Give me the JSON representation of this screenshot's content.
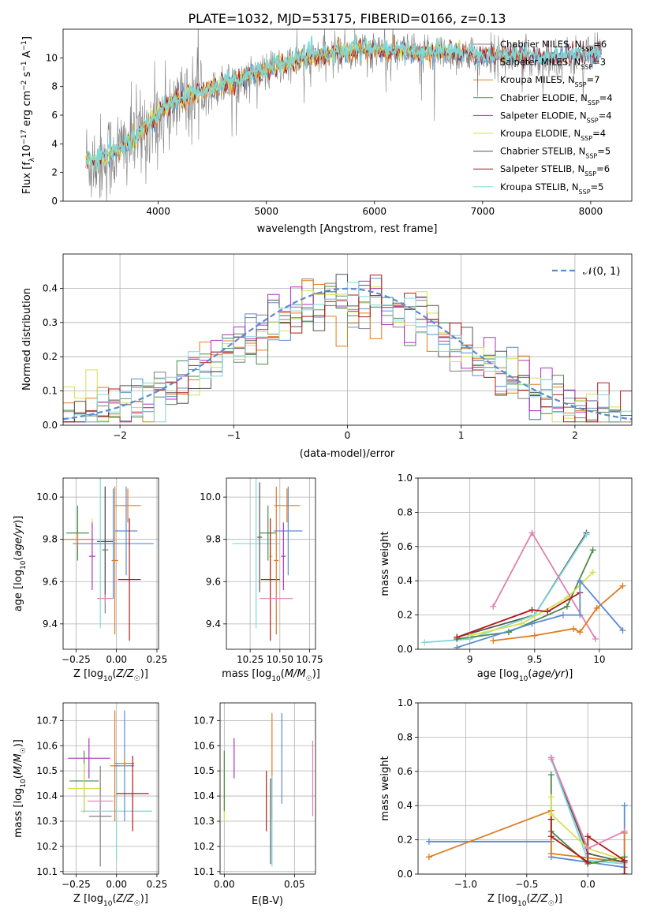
{
  "title": "PLATE=1032, MJD=53175, FIBERID=0166, z=0.13",
  "colors": {
    "Chabrier MILES": "#808080",
    "Salpeter MILES": "#5b8bd0",
    "Kroupa MILES": "#e07b20",
    "Chabrier ELODIE": "#4a8a4a",
    "Salpeter ELODIE": "#b030c0",
    "Kroupa ELODIE": "#d6e050",
    "Chabrier STELIB": "#555555",
    "Salpeter STELIB": "#b01a1a",
    "Kroupa STELIB": "#7fd8d8",
    "extra": "#e080b0"
  },
  "chart_data": [
    {
      "id": "spectrum",
      "type": "line",
      "xlabel": "wavelength [Angstrom, rest frame]",
      "ylabel": "Flux [f_λ10^-17 erg cm^-2 s^-1 A^-1]",
      "xlim": [
        3120,
        8380
      ],
      "ylim": [
        0,
        12
      ],
      "xticks": [
        4000,
        5000,
        6000,
        7000,
        8000
      ],
      "yticks": [
        0,
        2,
        4,
        6,
        8,
        10
      ],
      "legend_position": "top-right",
      "series": [
        {
          "name": "Chabrier MILES, N_SSP=6",
          "label": "Chabrier MILES, N",
          "sub": "SSP",
          "suffix": "=6"
        },
        {
          "name": "Salpeter MILES, N_SSP=3",
          "label": "Salpeter MILES, N",
          "sub": "SSP",
          "suffix": "=3"
        },
        {
          "name": "Kroupa MILES, N_SSP=7",
          "label": "Kroupa MILES, N",
          "sub": "SSP",
          "suffix": "=7"
        },
        {
          "name": "Chabrier ELODIE, N_SSP=4",
          "label": "Chabrier ELODIE, N",
          "sub": "SSP",
          "suffix": "=4"
        },
        {
          "name": "Salpeter ELODIE, N_SSP=4",
          "label": "Salpeter ELODIE, N",
          "sub": "SSP",
          "suffix": "=4"
        },
        {
          "name": "Kroupa ELODIE, N_SSP=4",
          "label": "Kroupa ELODIE, N",
          "sub": "SSP",
          "suffix": "=4"
        },
        {
          "name": "Chabrier STELIB, N_SSP=5",
          "label": "Chabrier STELIB, N",
          "sub": "SSP",
          "suffix": "=5"
        },
        {
          "name": "Salpeter STELIB, N_SSP=6",
          "label": "Salpeter STELIB, N",
          "sub": "SSP",
          "suffix": "=6"
        },
        {
          "name": "Kroupa STELIB, N_SSP=5",
          "label": "Kroupa STELIB, N",
          "sub": "SSP",
          "suffix": "=5"
        }
      ],
      "continuum": [
        [
          3450,
          2.8
        ],
        [
          3550,
          3.2
        ],
        [
          3650,
          3.6
        ],
        [
          3800,
          4.4
        ],
        [
          3950,
          5.6
        ],
        [
          4100,
          6.6
        ],
        [
          4300,
          7.3
        ],
        [
          4500,
          7.8
        ],
        [
          4700,
          8.3
        ],
        [
          4900,
          8.8
        ],
        [
          5100,
          9.3
        ],
        [
          5300,
          9.8
        ],
        [
          5500,
          10.1
        ],
        [
          5700,
          10.3
        ],
        [
          5900,
          10.5
        ],
        [
          6100,
          10.4
        ],
        [
          6300,
          10.3
        ],
        [
          6500,
          10.3
        ],
        [
          6700,
          10.3
        ],
        [
          6900,
          10.2
        ],
        [
          7100,
          10.1
        ],
        [
          7300,
          10.1
        ],
        [
          7500,
          10.0
        ],
        [
          7700,
          10.0
        ],
        [
          7900,
          10.1
        ],
        [
          8100,
          10.2
        ]
      ]
    },
    {
      "id": "residual-histogram",
      "type": "bar",
      "xlabel": "(data-model)/error",
      "ylabel": "Normed distribution",
      "xlim": [
        -2.5,
        2.5
      ],
      "ylim": [
        0,
        0.5
      ],
      "xticks": [
        -2,
        -1,
        0,
        1,
        2
      ],
      "yticks": [
        0.0,
        0.1,
        0.2,
        0.3,
        0.4
      ],
      "legend": {
        "label": "𝒩(0, 1)",
        "position": "top-right",
        "style": "dashed"
      },
      "bin_edges_start": -2.5,
      "bin_width": 0.1
    },
    {
      "id": "age-vs-Z",
      "type": "scatter",
      "xlabel": "Z [log10(Z/Z☉)]",
      "ylabel": "age [log10(age/yr)]",
      "xlim": [
        -0.33,
        0.26
      ],
      "ylim": [
        9.28,
        10.09
      ],
      "xticks": [
        -0.25,
        0.0,
        0.25
      ],
      "xticklabels": [
        "−0.25",
        "0.00",
        "0.25"
      ],
      "yticks": [
        9.4,
        9.6,
        9.8,
        10.0
      ],
      "points": [
        {
          "series": "Chabrier ELODIE",
          "x": -0.24,
          "y": 9.83,
          "xerr": 0.07,
          "yerr": 0.13
        },
        {
          "series": "Kroupa MILES",
          "x": -0.24,
          "y": 9.8,
          "xerr": 0.1,
          "yerr": 0.03
        },
        {
          "series": "Kroupa ELODIE",
          "x": -0.15,
          "y": 9.78,
          "xerr": 0.07,
          "yerr": 0.12
        },
        {
          "series": "Salpeter ELODIE",
          "x": -0.15,
          "y": 9.72,
          "xerr": 0.02,
          "yerr": 0.16
        },
        {
          "series": "Chabrier MILES",
          "x": -0.07,
          "y": 9.75,
          "xerr": 0.02,
          "yerr": 0.3
        },
        {
          "series": "Chabrier STELIB",
          "x": -0.07,
          "y": 9.79,
          "xerr": 0.05,
          "yerr": 0.26
        },
        {
          "series": "Kroupa STELIB",
          "x": -0.1,
          "y": 9.78,
          "xerr": 0.1,
          "yerr": 0.4
        },
        {
          "series": "Salpeter MILES",
          "x": -0.02,
          "y": 9.78,
          "xerr": 0.25,
          "yerr": 0.26
        },
        {
          "series": "Kroupa MILES",
          "x": -0.01,
          "y": 9.7,
          "xerr": 0.02,
          "yerr": 0.35
        },
        {
          "series": "Kroupa MILES",
          "x": 0.07,
          "y": 9.96,
          "xerr": 0.08,
          "yerr": 0.08
        },
        {
          "series": "Salpeter MILES",
          "x": 0.06,
          "y": 9.84,
          "xerr": 0.07,
          "yerr": 0.21
        },
        {
          "series": "Salpeter STELIB",
          "x": 0.08,
          "y": 9.61,
          "xerr": 0.07,
          "yerr": 0.29
        },
        {
          "series": "extra",
          "x": -0.07,
          "y": 9.52,
          "xerr": 0.05,
          "yerr": 0.02
        }
      ]
    },
    {
      "id": "age-vs-mass",
      "type": "scatter",
      "xlabel": "mass [log10(M/M☉)]",
      "xlim": [
        10.05,
        10.8
      ],
      "ylim": [
        9.28,
        10.09
      ],
      "xticks": [
        10.25,
        10.5,
        10.75
      ],
      "xticklabels": [
        "10.25",
        "10.50",
        "10.75"
      ],
      "yticks": [
        9.4,
        9.6,
        9.8,
        10.0
      ],
      "points": [
        {
          "series": "Kroupa STELIB",
          "x": 10.3,
          "y": 9.78,
          "xerr": 0.2,
          "yerr": 0.4
        },
        {
          "series": "Chabrier STELIB",
          "x": 10.33,
          "y": 9.81,
          "xerr": 0.02,
          "yerr": 0.26
        },
        {
          "series": "Chabrier ELODIE",
          "x": 10.4,
          "y": 9.83,
          "xerr": 0.07,
          "yerr": 0.13
        },
        {
          "series": "Kroupa ELODIE",
          "x": 10.42,
          "y": 9.72,
          "xerr": 0.02,
          "yerr": 0.12
        },
        {
          "series": "Salpeter STELIB",
          "x": 10.42,
          "y": 9.61,
          "xerr": 0.08,
          "yerr": 0.29
        },
        {
          "series": "Kroupa MILES",
          "x": 10.47,
          "y": 9.7,
          "xerr": 0.02,
          "yerr": 0.35
        },
        {
          "series": "Kroupa MILES",
          "x": 10.56,
          "y": 9.96,
          "xerr": 0.11,
          "yerr": 0.08
        },
        {
          "series": "Salpeter MILES",
          "x": 10.57,
          "y": 9.84,
          "xerr": 0.12,
          "yerr": 0.21
        },
        {
          "series": "Salpeter ELODIE",
          "x": 10.53,
          "y": 9.72,
          "xerr": 0.02,
          "yerr": 0.16
        },
        {
          "series": "extra",
          "x": 10.47,
          "y": 9.52,
          "xerr": 0.14,
          "yerr": 0.02
        }
      ]
    },
    {
      "id": "mass-weight-vs-age",
      "type": "line",
      "xlabel": "age [log10(age/yr)]",
      "ylabel": "mass weight",
      "xlim": [
        8.6,
        10.25
      ],
      "ylim": [
        0,
        1
      ],
      "xticks": [
        9.0,
        9.5,
        10.0
      ],
      "yticks": [
        0.0,
        0.2,
        0.4,
        0.6,
        0.8,
        1.0
      ],
      "series": [
        {
          "name": "Chabrier STELIB",
          "x": [
            8.9,
            9.5,
            9.9
          ],
          "y": [
            0.07,
            0.2,
            0.68
          ]
        },
        {
          "name": "Kroupa STELIB",
          "x": [
            8.65,
            9.0,
            9.5,
            9.9
          ],
          "y": [
            0.04,
            0.06,
            0.2,
            0.67
          ]
        },
        {
          "name": "Chabrier ELODIE",
          "x": [
            8.9,
            9.3,
            9.75,
            9.95
          ],
          "y": [
            0.06,
            0.1,
            0.25,
            0.58
          ]
        },
        {
          "name": "Kroupa ELODIE",
          "x": [
            9.0,
            9.4,
            9.75,
            9.95
          ],
          "y": [
            0.08,
            0.15,
            0.3,
            0.45
          ]
        },
        {
          "name": "extra",
          "x": [
            9.18,
            9.48,
            9.97
          ],
          "y": [
            0.25,
            0.68,
            0.06
          ]
        },
        {
          "name": "Salpeter STELIB",
          "x": [
            8.9,
            9.48,
            9.6,
            9.85
          ],
          "y": [
            0.07,
            0.23,
            0.22,
            0.33
          ]
        },
        {
          "name": "Kroupa MILES",
          "x": [
            9.18,
            9.5,
            9.8,
            9.85,
            9.98,
            10.18
          ],
          "y": [
            0.05,
            0.08,
            0.12,
            0.1,
            0.24,
            0.37
          ]
        },
        {
          "name": "Salpeter MILES",
          "x": [
            8.9,
            9.48,
            9.72,
            9.85,
            9.85,
            10.18
          ],
          "y": [
            0.01,
            0.15,
            0.2,
            0.2,
            0.4,
            0.11
          ]
        }
      ]
    },
    {
      "id": "mass-vs-Z",
      "type": "scatter",
      "xlabel": "Z [log10(Z/Z☉)]",
      "ylabel": "mass [log10(M/M☉)]",
      "xlim": [
        -0.33,
        0.26
      ],
      "ylim": [
        10.09,
        10.77
      ],
      "xticks": [
        -0.25,
        0.0,
        0.25
      ],
      "xticklabels": [
        "−0.25",
        "0.00",
        "0.25"
      ],
      "yticks": [
        10.1,
        10.2,
        10.3,
        10.4,
        10.5,
        10.6,
        10.7
      ],
      "points": [
        {
          "series": "Salpeter ELODIE",
          "x": -0.17,
          "y": 10.55,
          "xerr": 0.13,
          "yerr": 0.08
        },
        {
          "series": "Chabrier ELODIE",
          "x": -0.2,
          "y": 10.46,
          "xerr": 0.09,
          "yerr": 0.12
        },
        {
          "series": "Kroupa ELODIE",
          "x": -0.2,
          "y": 10.43,
          "xerr": 0.1,
          "yerr": 0.1
        },
        {
          "series": "Chabrier MILES",
          "x": -0.1,
          "y": 10.32,
          "xerr": 0.07,
          "yerr": 0.2
        },
        {
          "series": "extra",
          "x": -0.1,
          "y": 10.38,
          "xerr": 0.08,
          "yerr": 0.02
        },
        {
          "series": "Kroupa STELIB",
          "x": 0.0,
          "y": 10.34,
          "xerr": 0.22,
          "yerr": 0.2
        },
        {
          "series": "Kroupa MILES",
          "x": -0.01,
          "y": 10.52,
          "xerr": 0.03,
          "yerr": 0.22
        },
        {
          "series": "Salpeter MILES",
          "x": 0.05,
          "y": 10.52,
          "xerr": 0.06,
          "yerr": 0.22
        },
        {
          "series": "Kroupa MILES",
          "x": 0.05,
          "y": 10.53,
          "xerr": 0.06,
          "yerr": 0.02
        },
        {
          "series": "Salpeter STELIB",
          "x": 0.1,
          "y": 10.41,
          "xerr": 0.1,
          "yerr": 0.15
        }
      ]
    },
    {
      "id": "mass-vs-EBV",
      "type": "scatter",
      "xlabel": "E(B-V)",
      "xlim": [
        -0.003,
        0.065
      ],
      "ylim": [
        10.09,
        10.77
      ],
      "xticks": [
        0.0,
        0.05
      ],
      "xticklabels": [
        "0.00",
        "0.05"
      ],
      "yticks": [
        10.1,
        10.2,
        10.3,
        10.4,
        10.5,
        10.6,
        10.7
      ],
      "points": [
        {
          "series": "Kroupa ELODIE",
          "x": 0.0,
          "y": 10.43,
          "xerr": 0,
          "yerr": 0.13
        },
        {
          "series": "Chabrier ELODIE",
          "x": 0.0,
          "y": 10.46,
          "xerr": 0,
          "yerr": 0.12
        },
        {
          "series": "Salpeter ELODIE",
          "x": 0.007,
          "y": 10.55,
          "xerr": 0,
          "yerr": 0.08
        },
        {
          "series": "Salpeter STELIB",
          "x": 0.03,
          "y": 10.38,
          "xerr": 0,
          "yerr": 0.12
        },
        {
          "series": "Kroupa MILES",
          "x": 0.034,
          "y": 10.52,
          "xerr": 0,
          "yerr": 0.21
        },
        {
          "series": "Chabrier STELIB",
          "x": 0.033,
          "y": 10.3,
          "xerr": 0,
          "yerr": 0.17
        },
        {
          "series": "Kroupa STELIB",
          "x": 0.034,
          "y": 10.3,
          "xerr": 0,
          "yerr": 0.18
        },
        {
          "series": "Salpeter MILES",
          "x": 0.041,
          "y": 10.55,
          "xerr": 0,
          "yerr": 0.18
        },
        {
          "series": "extra",
          "x": 0.063,
          "y": 10.47,
          "xerr": 0,
          "yerr": 0.15
        }
      ]
    },
    {
      "id": "mass-weight-vs-Z",
      "type": "line",
      "xlabel": "Z [log10(Z/Z☉)]",
      "ylabel": "mass weight",
      "xlim": [
        -1.39,
        0.36
      ],
      "ylim": [
        0,
        1
      ],
      "xticks": [
        -1.0,
        -0.5,
        0.0
      ],
      "xticklabels": [
        "−1.0",
        "−0.5",
        "0.0"
      ],
      "yticks": [
        0.0,
        0.2,
        0.4,
        0.6,
        0.8,
        1.0
      ],
      "series": [
        {
          "name": "Salpeter MILES",
          "x": [
            -1.3,
            -0.3,
            -0.3,
            0.3,
            0.3
          ],
          "y": [
            0.19,
            0.19,
            0.1,
            0.04,
            0.4
          ]
        },
        {
          "name": "Kroupa MILES",
          "x": [
            -1.3,
            -0.3,
            -0.3,
            0.3,
            0.3
          ],
          "y": [
            0.1,
            0.37,
            0.12,
            0.07,
            0.24
          ]
        },
        {
          "name": "Chabrier STELIB",
          "x": [
            -0.3,
            0.0,
            0.3,
            0.3
          ],
          "y": [
            0.68,
            0.12,
            0.07,
            0.0
          ]
        },
        {
          "name": "Kroupa STELIB",
          "x": [
            -0.3,
            0.0,
            0.3
          ],
          "y": [
            0.67,
            0.08,
            0.06
          ]
        },
        {
          "name": "Chabrier ELODIE",
          "x": [
            -0.3,
            -0.3,
            0.0,
            0.3
          ],
          "y": [
            0.58,
            0.25,
            0.06,
            0.1
          ]
        },
        {
          "name": "Kroupa ELODIE",
          "x": [
            -0.3,
            -0.3,
            0.0,
            0.3
          ],
          "y": [
            0.45,
            0.35,
            0.15,
            0.08
          ]
        },
        {
          "name": "Salpeter STELIB",
          "x": [
            -0.3,
            -0.3,
            0.0,
            0.0,
            0.3,
            0.3
          ],
          "y": [
            0.32,
            0.22,
            0.07,
            0.22,
            0.08,
            0.0
          ]
        },
        {
          "name": "extra",
          "x": [
            -0.3,
            0.0,
            0.3
          ],
          "y": [
            0.68,
            0.15,
            0.25
          ]
        }
      ]
    }
  ]
}
